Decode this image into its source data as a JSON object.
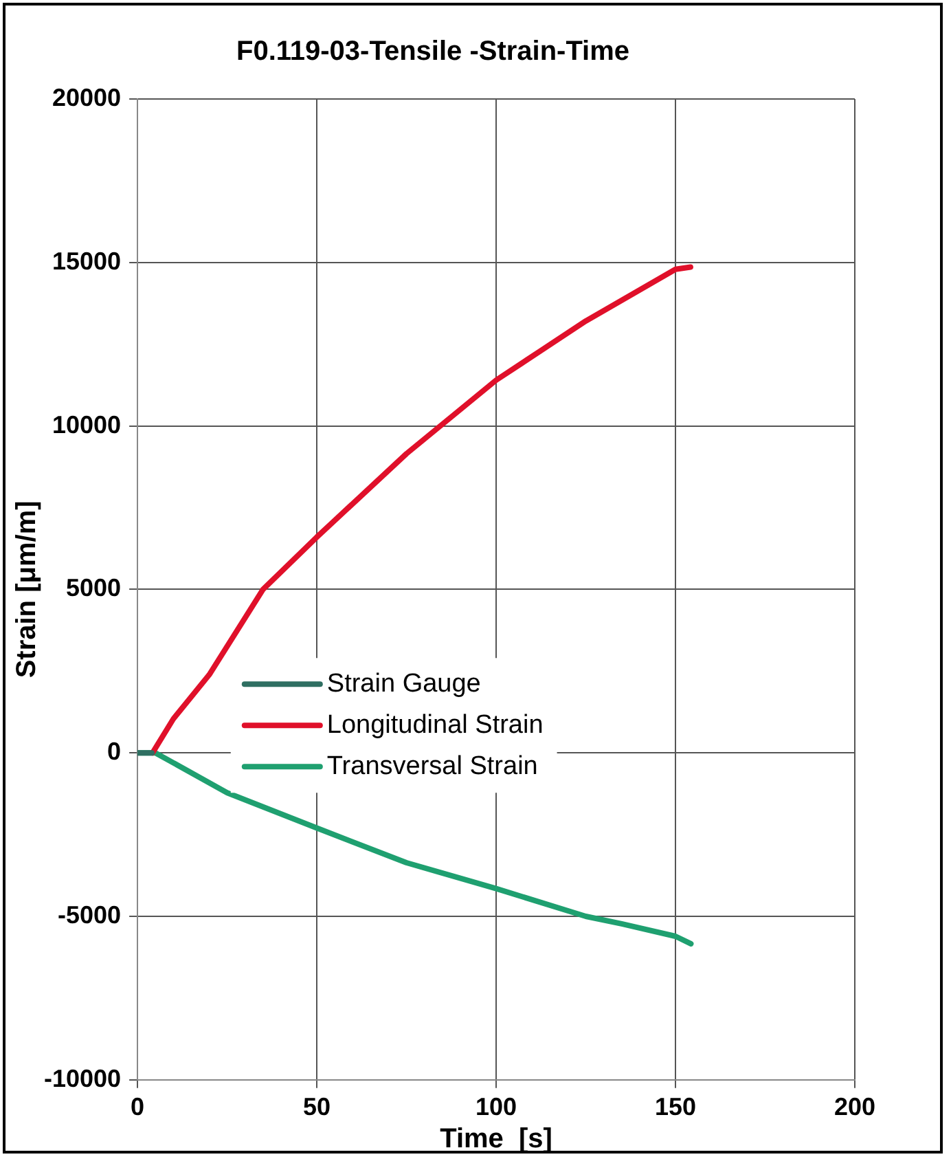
{
  "chart_data": {
    "type": "line",
    "title": "F0.119-03-Tensile -Strain-Time",
    "xlabel": "Time  [s]",
    "ylabel": "Strain [μm/m]",
    "series": [
      {
        "name": "Strain Gauge",
        "color": "#2f6f62",
        "x": [
          0,
          4
        ],
        "values": [
          0,
          0
        ]
      },
      {
        "name": "Longitudinal Strain",
        "color": "#e0102a",
        "x": [
          4.2,
          10,
          20,
          35,
          50,
          75,
          100,
          125,
          150,
          154.2
        ],
        "values": [
          0,
          1040,
          2390,
          5000,
          6600,
          9150,
          11400,
          13210,
          14790,
          14860
        ]
      },
      {
        "name": "Transversal Strain",
        "color": "#1fa070",
        "x": [
          0,
          5,
          25,
          50,
          75,
          100,
          125,
          135,
          150,
          154.3
        ],
        "values": [
          0,
          0,
          -1220,
          -2300,
          -3360,
          -4150,
          -5000,
          -5230,
          -5610,
          -5840
        ]
      }
    ],
    "xlim": [
      0,
      200
    ],
    "xticks": [
      0,
      50,
      100,
      150,
      200
    ],
    "ylim": [
      -10000,
      20000
    ],
    "yticks": [
      -10000,
      -5000,
      0,
      5000,
      10000,
      15000,
      20000
    ],
    "grid": true,
    "legend": "left",
    "marker": "none",
    "line_style": "solid"
  }
}
